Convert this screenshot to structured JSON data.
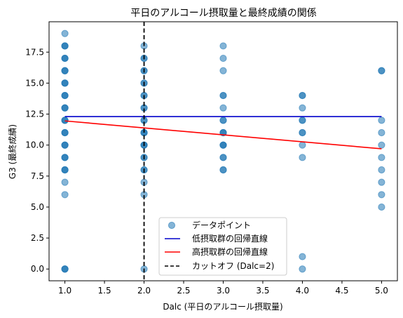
{
  "chart_data": {
    "type": "scatter",
    "title": "平日のアルコール摂取量と最終成績の関係",
    "xlabel": "Dalc (平日のアルコール摂取量)",
    "ylabel": "G3 (最終成績)",
    "xlim": [
      0.8,
      5.2
    ],
    "ylim": [
      -0.95,
      19.95
    ],
    "x_ticks": [
      1.0,
      1.5,
      2.0,
      2.5,
      3.0,
      3.5,
      4.0,
      4.5,
      5.0
    ],
    "x_tick_labels": [
      "1.0",
      "1.5",
      "2.0",
      "2.5",
      "3.0",
      "3.5",
      "4.0",
      "4.5",
      "5.0"
    ],
    "y_ticks": [
      0.0,
      2.5,
      5.0,
      7.5,
      10.0,
      12.5,
      15.0,
      17.5
    ],
    "y_tick_labels": [
      "0.0",
      "2.5",
      "5.0",
      "7.5",
      "10.0",
      "12.5",
      "15.0",
      "17.5"
    ],
    "grid": false,
    "legend_position": "lower-center",
    "scatter": {
      "name": "データポイント",
      "color": "#1f77b4",
      "points": [
        [
          1,
          0
        ],
        [
          1,
          0
        ],
        [
          1,
          0
        ],
        [
          1,
          6
        ],
        [
          1,
          7
        ],
        [
          1,
          8
        ],
        [
          1,
          8
        ],
        [
          1,
          8
        ],
        [
          1,
          9
        ],
        [
          1,
          9
        ],
        [
          1,
          9
        ],
        [
          1,
          10
        ],
        [
          1,
          10
        ],
        [
          1,
          10
        ],
        [
          1,
          11
        ],
        [
          1,
          11
        ],
        [
          1,
          11
        ],
        [
          1,
          12
        ],
        [
          1,
          12
        ],
        [
          1,
          12
        ],
        [
          1,
          13
        ],
        [
          1,
          13
        ],
        [
          1,
          13
        ],
        [
          1,
          14
        ],
        [
          1,
          14
        ],
        [
          1,
          14
        ],
        [
          1,
          15
        ],
        [
          1,
          15
        ],
        [
          1,
          15
        ],
        [
          1,
          16
        ],
        [
          1,
          16
        ],
        [
          1,
          16
        ],
        [
          1,
          17
        ],
        [
          1,
          17
        ],
        [
          1,
          17
        ],
        [
          1,
          18
        ],
        [
          1,
          18
        ],
        [
          1,
          18
        ],
        [
          1,
          19
        ],
        [
          2,
          0
        ],
        [
          2,
          6
        ],
        [
          2,
          7
        ],
        [
          2,
          8
        ],
        [
          2,
          8
        ],
        [
          2,
          9
        ],
        [
          2,
          9
        ],
        [
          2,
          10
        ],
        [
          2,
          10
        ],
        [
          2,
          10
        ],
        [
          2,
          11
        ],
        [
          2,
          11
        ],
        [
          2,
          11
        ],
        [
          2,
          12
        ],
        [
          2,
          12
        ],
        [
          2,
          13
        ],
        [
          2,
          13
        ],
        [
          2,
          14
        ],
        [
          2,
          14
        ],
        [
          2,
          15
        ],
        [
          2,
          15
        ],
        [
          2,
          16
        ],
        [
          2,
          16
        ],
        [
          2,
          17
        ],
        [
          2,
          17
        ],
        [
          2,
          18
        ],
        [
          3,
          8
        ],
        [
          3,
          8
        ],
        [
          3,
          9
        ],
        [
          3,
          9
        ],
        [
          3,
          10
        ],
        [
          3,
          10
        ],
        [
          3,
          10
        ],
        [
          3,
          11
        ],
        [
          3,
          11
        ],
        [
          3,
          11
        ],
        [
          3,
          12
        ],
        [
          3,
          12
        ],
        [
          3,
          13
        ],
        [
          3,
          14
        ],
        [
          3,
          14
        ],
        [
          3,
          16
        ],
        [
          3,
          17
        ],
        [
          3,
          18
        ],
        [
          4,
          0
        ],
        [
          4,
          1
        ],
        [
          4,
          9
        ],
        [
          4,
          10
        ],
        [
          4,
          11
        ],
        [
          4,
          11
        ],
        [
          4,
          12
        ],
        [
          4,
          12
        ],
        [
          4,
          13
        ],
        [
          4,
          14
        ],
        [
          4,
          14
        ],
        [
          5,
          5
        ],
        [
          5,
          6
        ],
        [
          5,
          7
        ],
        [
          5,
          8
        ],
        [
          5,
          9
        ],
        [
          5,
          10
        ],
        [
          5,
          11
        ],
        [
          5,
          12
        ],
        [
          5,
          16
        ],
        [
          5,
          16
        ]
      ]
    },
    "lines": [
      {
        "name": "低摂取群の回帰直線",
        "color": "#0000cc",
        "style": "solid",
        "x": [
          1,
          5
        ],
        "y": [
          12.3,
          12.3
        ]
      },
      {
        "name": "高摂取群の回帰直線",
        "color": "#ff0000",
        "style": "solid",
        "x": [
          1,
          5
        ],
        "y": [
          11.95,
          9.7
        ]
      }
    ],
    "vlines": [
      {
        "name": "カットオフ (Dalc=2)",
        "color": "#000000",
        "style": "dashed",
        "x": 2
      }
    ]
  }
}
